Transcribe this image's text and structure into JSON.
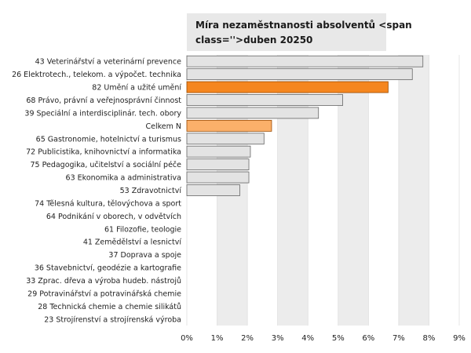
{
  "chart_data": {
    "type": "bar",
    "orientation": "horizontal",
    "title": "Míra nezaměstnanosti absolventů <span class=''>duben 20250",
    "categories": [
      "43 Veterinářství a veterinární prevence",
      "26 Elektrotech., telekom. a výpočet. technika",
      "82 Umění a užité umění",
      "68 Právo, právní a veřejnosprávní činnost",
      "39 Speciální a interdisciplinár. tech. obory",
      "Celkem N",
      "65 Gastronomie, hotelnictví a turismus",
      "72 Publicistika, knihovnictví a informatika",
      "75 Pedagogika, učitelství a sociální péče",
      "63 Ekonomika a administrativa",
      "53 Zdravotnictví",
      "74 Tělesná kultura, tělovýchova a sport",
      "64 Podnikání v oborech, v odvětvích",
      "61 Filozofie, teologie",
      "41 Zemědělství a lesnictví",
      "37 Doprava a spoje",
      "36 Stavebnictví, geodézie a kartografie",
      "33 Zprac. dřeva a výroba hudeb. nástrojů",
      "29 Potravinářství a potravinářská chemie",
      "28 Technická chemie a chemie silikátů",
      "23 Strojírenství a strojírenská výroba"
    ],
    "values": [
      7.8,
      7.45,
      6.65,
      5.15,
      4.35,
      2.8,
      2.55,
      2.1,
      2.05,
      2.05,
      1.75,
      0,
      0,
      0,
      0,
      0,
      0,
      0,
      0,
      0,
      0
    ],
    "highlight": {
      "82 Umění a užité umění": "#f5861f",
      "Celkem N": "#fbb06a"
    },
    "xlim": [
      0,
      9
    ],
    "xticks": [
      "0%",
      "1%",
      "2%",
      "3%",
      "4%",
      "5%",
      "6%",
      "7%",
      "8%",
      "9%"
    ],
    "xlabel": "",
    "ylabel": "",
    "grid": "vertical alternating bands",
    "legend": "none"
  },
  "colors": {
    "default_bar_fill": "#e3e3e3",
    "default_bar_stroke": "#666666",
    "highlight_bar_stroke": "#9a4a00",
    "band_fill": "#ececec",
    "title_box_fill": "#e8e8e8"
  }
}
